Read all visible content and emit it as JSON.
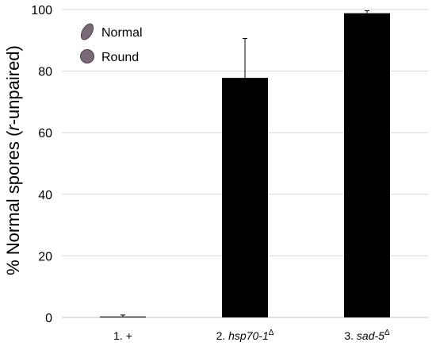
{
  "chart_data": {
    "type": "bar",
    "categories": [
      {
        "prefix": "1. ",
        "gene": "+",
        "italic": false,
        "superscript": ""
      },
      {
        "prefix": "2. ",
        "gene": "hsp70-1",
        "italic": true,
        "superscript": "Δ"
      },
      {
        "prefix": "3. ",
        "gene": "sad-5",
        "italic": true,
        "superscript": "Δ"
      }
    ],
    "values": [
      0.3,
      77.8,
      98.8
    ],
    "errors": [
      0.5,
      12.8,
      0.8
    ],
    "ylabel": {
      "pre": "% Normal spores (",
      "italic": "r",
      "post": "-unpaired)"
    },
    "ylim": [
      0,
      100
    ],
    "yticks": [
      0,
      20,
      40,
      60,
      80,
      100
    ],
    "grid": true,
    "bar_color": "#000000",
    "grid_color": "#d9d9d9",
    "legend": {
      "placement": "top-left",
      "items": [
        {
          "label": "Normal",
          "shape": "oval-spore",
          "color": "#7a6a78"
        },
        {
          "label": "Round",
          "shape": "round-spore",
          "color": "#7a6a78"
        }
      ]
    }
  }
}
